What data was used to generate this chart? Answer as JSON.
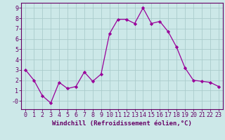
{
  "x": [
    0,
    1,
    2,
    3,
    4,
    5,
    6,
    7,
    8,
    9,
    10,
    11,
    12,
    13,
    14,
    15,
    16,
    17,
    18,
    19,
    20,
    21,
    22,
    23
  ],
  "y": [
    3,
    2,
    0.5,
    -0.2,
    1.8,
    1.2,
    1.4,
    2.8,
    1.9,
    2.6,
    6.5,
    7.9,
    7.9,
    7.5,
    9.0,
    7.5,
    7.7,
    6.7,
    5.2,
    3.2,
    2.0,
    1.9,
    1.8,
    1.4
  ],
  "line_color": "#990099",
  "marker": "D",
  "marker_size": 2.2,
  "bg_color": "#cce8e8",
  "grid_color": "#aacccc",
  "spine_color": "#660066",
  "xlabel": "Windchill (Refroidissement éolien,°C)",
  "xlim": [
    -0.5,
    23.5
  ],
  "ylim": [
    -0.8,
    9.5
  ],
  "yticks": [
    0,
    1,
    2,
    3,
    4,
    5,
    6,
    7,
    8,
    9
  ],
  "ytick_labels": [
    "-0",
    "1",
    "2",
    "3",
    "4",
    "5",
    "6",
    "7",
    "8",
    "9"
  ],
  "xticks": [
    0,
    1,
    2,
    3,
    4,
    5,
    6,
    7,
    8,
    9,
    10,
    11,
    12,
    13,
    14,
    15,
    16,
    17,
    18,
    19,
    20,
    21,
    22,
    23
  ],
  "tick_color": "#660066",
  "xlabel_color": "#660066",
  "xlabel_fontsize": 6.5,
  "tick_fontsize": 6.0,
  "linewidth": 0.9
}
